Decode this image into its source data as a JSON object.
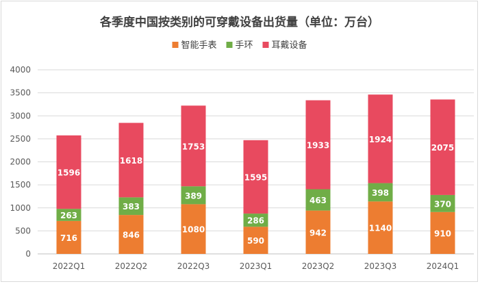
{
  "chart_data": {
    "type": "bar",
    "stacked": true,
    "title": "各季度中国按类别的可穿戴设备出货量（单位：万台）",
    "xlabel": "",
    "ylabel": "",
    "categories": [
      "2022Q1",
      "2022Q2",
      "2022Q3",
      "2023Q1",
      "2023Q2",
      "2023Q3",
      "2024Q1"
    ],
    "series": [
      {
        "name": "智能手表",
        "color": "#ed7d31",
        "values": [
          716,
          846,
          1080,
          590,
          942,
          1140,
          910
        ]
      },
      {
        "name": "手环",
        "color": "#70ad47",
        "values": [
          263,
          383,
          389,
          286,
          463,
          398,
          370
        ]
      },
      {
        "name": "耳戴设备",
        "color": "#e84a5f",
        "values": [
          1596,
          1618,
          1753,
          1595,
          1933,
          1924,
          2075
        ]
      }
    ],
    "ylim": [
      0,
      4000
    ],
    "yticks": [
      0,
      500,
      1000,
      1500,
      2000,
      2500,
      3000,
      3500,
      4000
    ],
    "grid": true,
    "legend": "top",
    "data_labels": true
  }
}
